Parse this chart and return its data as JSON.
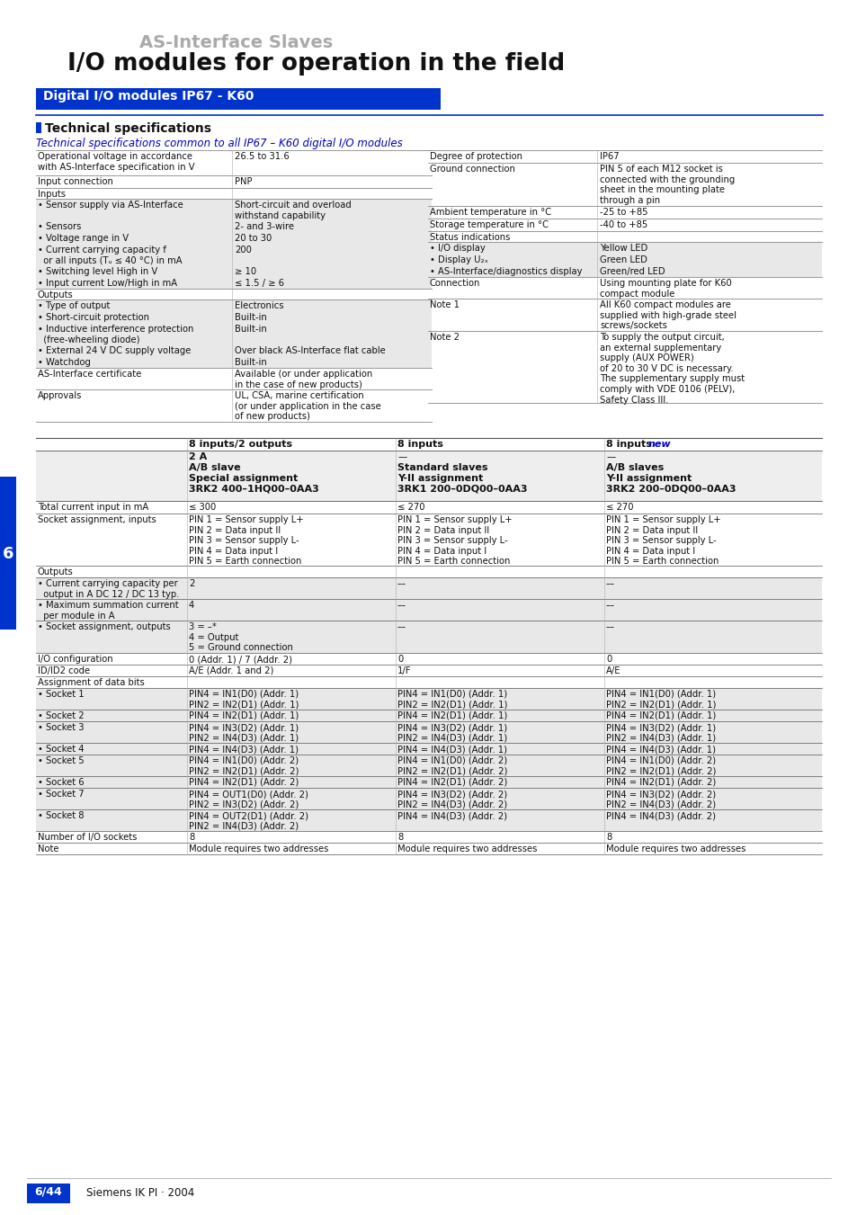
{
  "page_bg": "#ffffff",
  "header_title_gray": "AS-Interface Slaves",
  "header_title_black": "I/O modules for operation in the field",
  "section_bar_text": "Digital I/O modules IP67 - K60",
  "tech_spec_label": "Technical specifications",
  "tech_spec_subtitle": "Technical specifications common to all IP67 – K60 digital I/O modules",
  "left_table": [
    [
      "Operational voltage in accordance\nwith AS-Interface specification in V",
      "26.5 to 31.6",
      false
    ],
    [
      "Input connection",
      "PNP",
      false
    ],
    [
      "Inputs",
      "",
      false
    ],
    [
      "• Sensor supply via AS-Interface",
      "Short-circuit and overload\nwithstand capability",
      true
    ],
    [
      "• Sensors",
      "2- and 3-wire",
      true
    ],
    [
      "• Voltage range in V",
      "20 to 30",
      true
    ],
    [
      "• Current carrying capacity f\n  or all inputs (Tᵤ ≤ 40 °C) in mA",
      "200",
      true
    ],
    [
      "• Switching level High in V",
      "≥ 10",
      true
    ],
    [
      "• Input current Low/High in mA",
      "≤ 1.5 / ≥ 6",
      true
    ],
    [
      "Outputs",
      "",
      false
    ],
    [
      "• Type of output",
      "Electronics",
      true
    ],
    [
      "• Short-circuit protection",
      "Built-in",
      true
    ],
    [
      "• Inductive interference protection\n  (free-wheeling diode)",
      "Built-in",
      true
    ],
    [
      "• External 24 V DC supply voltage",
      "Over black AS-Interface flat cable",
      true
    ],
    [
      "• Watchdog",
      "Built-in",
      true
    ],
    [
      "AS-Interface certificate",
      "Available (or under application\nin the case of new products)",
      false
    ],
    [
      "Approvals",
      "UL, CSA, marine certification\n(or under application in the case\nof new products)",
      false
    ]
  ],
  "right_table": [
    [
      "Degree of protection",
      "IP67",
      false
    ],
    [
      "Ground connection",
      "PIN 5 of each M12 socket is\nconnected with the grounding\nsheet in the mounting plate\nthrough a pin",
      false
    ],
    [
      "Ambient temperature in °C",
      "-25 to +85",
      false
    ],
    [
      "Storage temperature in °C",
      "-40 to +85",
      false
    ],
    [
      "Status indications",
      "",
      false
    ],
    [
      "• I/O display",
      "Yellow LED",
      true
    ],
    [
      "• Display U₂ₓ",
      "Green LED",
      true
    ],
    [
      "• AS-Interface/diagnostics display",
      "Green/red LED",
      true
    ],
    [
      "Connection",
      "Using mounting plate for K60\ncompact module",
      false
    ],
    [
      "Note 1",
      "All K60 compact modules are\nsupplied with high-grade steel\nscrews/sockets",
      false
    ],
    [
      "Note 2",
      "To supply the output circuit,\nan external supplementary\nsupply (AUX POWER)\nof 20 to 30 V DC is necessary.\nThe supplementary supply must\ncomply with VDE 0106 (PELV),\nSafety Class III.",
      false
    ]
  ],
  "footer_page": "6/44",
  "footer_company": "Siemens IK PI · 2004",
  "side_number": "6"
}
